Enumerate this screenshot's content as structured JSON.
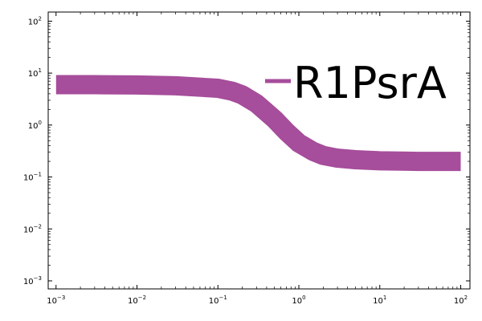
{
  "chart_data": {
    "type": "line",
    "title": "",
    "xlabel": "",
    "ylabel": "",
    "x_scale": "log",
    "y_scale": "log",
    "xlim": [
      0.0008,
      130
    ],
    "ylim": [
      0.0007,
      150
    ],
    "grid": false,
    "legend": {
      "placement": "top-right",
      "entries": [
        "R1PsrA"
      ]
    },
    "x_ticks": [
      {
        "value": 0.001,
        "base": "10",
        "exp": "−3"
      },
      {
        "value": 0.01,
        "base": "10",
        "exp": "−2"
      },
      {
        "value": 0.1,
        "base": "10",
        "exp": "−1"
      },
      {
        "value": 1,
        "base": "10",
        "exp": "0"
      },
      {
        "value": 10,
        "base": "10",
        "exp": "1"
      },
      {
        "value": 100,
        "base": "10",
        "exp": "2"
      }
    ],
    "y_ticks": [
      {
        "value": 0.001,
        "base": "10",
        "exp": "−3"
      },
      {
        "value": 0.01,
        "base": "10",
        "exp": "−2"
      },
      {
        "value": 0.1,
        "base": "10",
        "exp": "−1"
      },
      {
        "value": 1,
        "base": "10",
        "exp": "0"
      },
      {
        "value": 10,
        "base": "10",
        "exp": "1"
      },
      {
        "value": 100,
        "base": "10",
        "exp": "2"
      }
    ],
    "series": [
      {
        "name": "R1PsrA",
        "color": "#a64d9b",
        "x": [
          0.001,
          0.003,
          0.01,
          0.03,
          0.1,
          0.15,
          0.2,
          0.3,
          0.5,
          0.7,
          1,
          1.5,
          2,
          3,
          5,
          10,
          30,
          100
        ],
        "y": [
          6.0,
          6.0,
          5.9,
          5.7,
          5.1,
          4.5,
          3.8,
          2.6,
          1.3,
          0.75,
          0.45,
          0.31,
          0.26,
          0.23,
          0.215,
          0.205,
          0.2,
          0.2
        ]
      }
    ]
  }
}
